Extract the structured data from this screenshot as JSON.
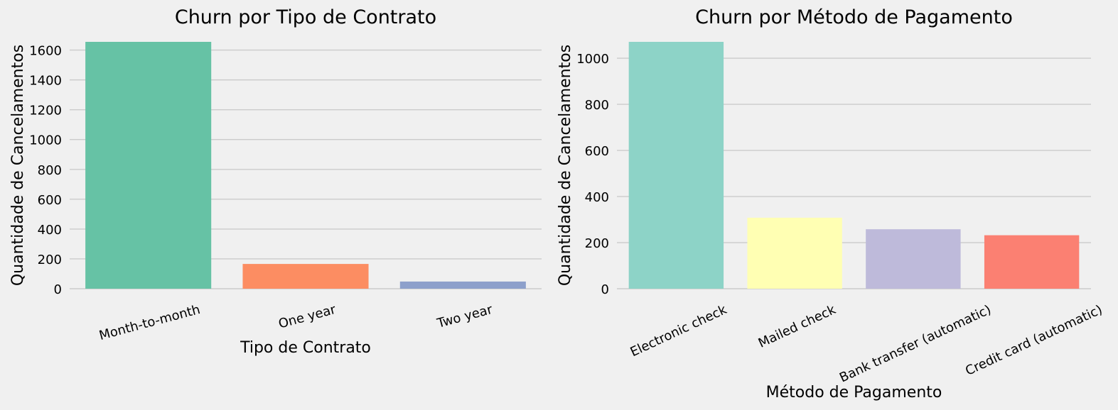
{
  "chart_data": [
    {
      "type": "bar",
      "title": "Churn por Tipo de Contrato",
      "xlabel": "Tipo de Contrato",
      "ylabel": "Quantidade de Cancelamentos",
      "categories": [
        "Month-to-month",
        "One year",
        "Two year"
      ],
      "values": [
        1655,
        166,
        48
      ],
      "colors": [
        "#66c2a5",
        "#fc8d62",
        "#8da0cb"
      ],
      "ylim": [
        0,
        1655
      ],
      "yticks": [
        0,
        200,
        400,
        600,
        800,
        1000,
        1200,
        1400,
        1600
      ],
      "grid": true,
      "xtick_rotation": -15
    },
    {
      "type": "bar",
      "title": "Churn por Método de Pagamento",
      "xlabel": "Método de Pagamento",
      "ylabel": "Quantidade de Cancelamentos",
      "categories": [
        "Electronic check",
        "Mailed check",
        "Bank transfer (automatic)",
        "Credit card (automatic)"
      ],
      "values": [
        1071,
        308,
        258,
        232
      ],
      "colors": [
        "#8dd3c7",
        "#ffffb3",
        "#bebada",
        "#fb8072"
      ],
      "ylim": [
        0,
        1071
      ],
      "yticks": [
        0,
        200,
        400,
        600,
        800,
        1000
      ],
      "grid": true,
      "xtick_rotation": -25
    }
  ]
}
